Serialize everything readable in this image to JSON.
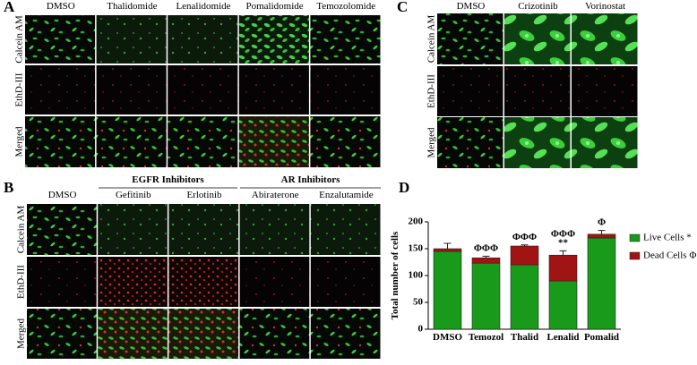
{
  "panels": {
    "A": {
      "label": "A",
      "columns": [
        "DMSO",
        "Thalidomide",
        "Lenalidomide",
        "Pomalidomide",
        "Temozolomide"
      ],
      "rows": [
        "Calcein AM",
        "EthD-III",
        "Merged"
      ]
    },
    "B": {
      "label": "B",
      "groups": [
        "EGFR Inhibitors",
        "AR Inhibitors"
      ],
      "columns": [
        "DMSO",
        "Gefitinib",
        "Erlotinib",
        "Abiraterone",
        "Enzalutamide"
      ],
      "rows": [
        "Calcein AM",
        "EthD-III",
        "Merged"
      ]
    },
    "C": {
      "label": "C",
      "columns": [
        "DMSO",
        "Crizotinib",
        "Vorinostat"
      ],
      "rows": [
        "Calcein AM",
        "EthD-III",
        "Merged"
      ]
    },
    "D": {
      "label": "D"
    }
  },
  "chart_data": {
    "type": "stacked_bar",
    "y_label": "Total number of cells",
    "categories": [
      "DMSO",
      "Temozol",
      "Thalid",
      "Lenalid",
      "Pomalid"
    ],
    "series": [
      {
        "name": "Live Cells  *",
        "color": "#1a9a1a",
        "values": [
          145,
          123,
          120,
          90,
          170
        ],
        "errors": [
          null,
          null,
          null,
          8,
          null
        ]
      },
      {
        "name": "Dead Cells Φ",
        "color": "#a01414",
        "values": [
          5,
          10,
          35,
          48,
          7
        ],
        "errors": [
          10,
          3,
          2,
          8,
          7
        ]
      }
    ],
    "annotations": [
      {
        "category": 1,
        "text": "ΦΦΦ"
      },
      {
        "category": 2,
        "text": "ΦΦΦ"
      },
      {
        "category": 3,
        "text": "ΦΦΦ"
      },
      {
        "category": 3,
        "text": "**"
      },
      {
        "category": 4,
        "text": "Φ"
      }
    ],
    "ylim": [
      0,
      200
    ],
    "yticks": [
      0,
      50,
      100,
      150,
      200
    ]
  }
}
